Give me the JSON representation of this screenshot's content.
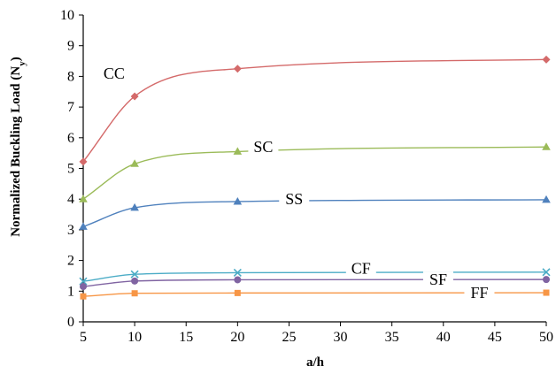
{
  "chart_data": {
    "type": "line",
    "title": "",
    "xlabel": "a/h",
    "ylabel": "Normalized Buckling Load (N",
    "ylabel_sub": "y",
    "ylabel_close": ")",
    "xlim": [
      5,
      50
    ],
    "ylim": [
      0,
      10
    ],
    "x_ticks": [
      "5",
      "10",
      "15",
      "20",
      "25",
      "30",
      "35",
      "40",
      "45",
      "50"
    ],
    "y_ticks": [
      "0",
      "1",
      "2",
      "3",
      "4",
      "5",
      "6",
      "7",
      "8",
      "9",
      "10"
    ],
    "grid": false,
    "legend": "inline labels",
    "x": [
      5,
      10,
      20,
      50
    ],
    "series": [
      {
        "name": "CC",
        "values": [
          5.22,
          7.35,
          8.25,
          8.55
        ],
        "color": "#d46a6a",
        "marker": "diamond"
      },
      {
        "name": "SC",
        "values": [
          4.0,
          5.15,
          5.55,
          5.7
        ],
        "color": "#9bbb59",
        "marker": "triangle"
      },
      {
        "name": "SS",
        "values": [
          3.1,
          3.72,
          3.92,
          3.98
        ],
        "color": "#4f81bd",
        "marker": "triangle"
      },
      {
        "name": "CF",
        "values": [
          1.32,
          1.55,
          1.6,
          1.62
        ],
        "color": "#4bacc6",
        "marker": "x"
      },
      {
        "name": "SF",
        "values": [
          1.15,
          1.33,
          1.37,
          1.38
        ],
        "color": "#8064a2",
        "marker": "circle"
      },
      {
        "name": "FF",
        "values": [
          0.83,
          0.93,
          0.94,
          0.95
        ],
        "color": "#f79646",
        "marker": "square"
      }
    ]
  }
}
